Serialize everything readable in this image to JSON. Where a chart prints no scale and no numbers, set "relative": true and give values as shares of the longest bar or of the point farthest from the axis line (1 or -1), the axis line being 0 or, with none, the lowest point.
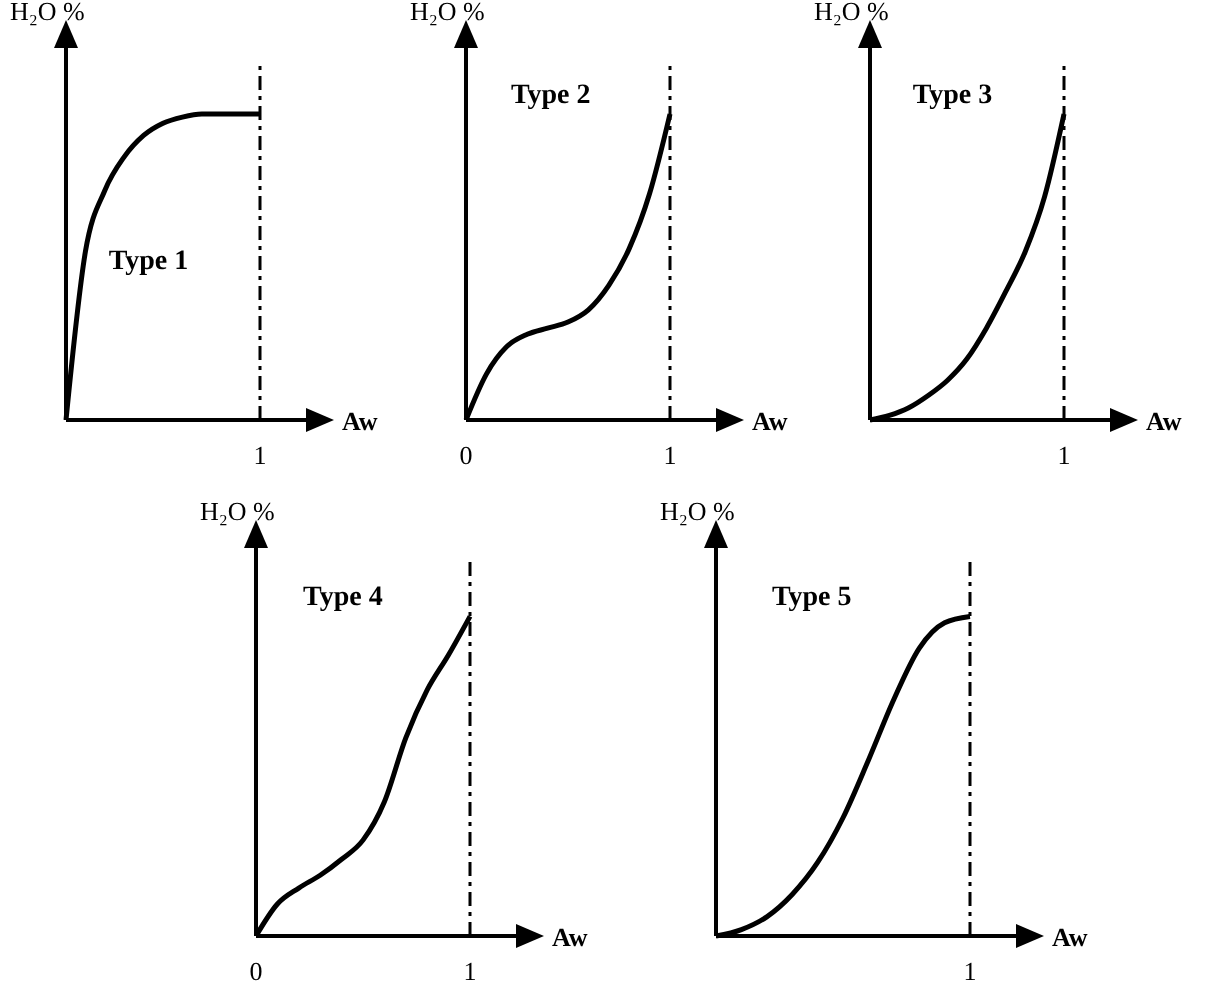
{
  "chart_data": [
    {
      "type": "line",
      "xlabel": "Aw",
      "ylabel": "H₂O %",
      "relative": true,
      "categories": [
        null,
        null,
        null,
        null,
        null,
        null,
        null,
        null,
        null,
        null,
        null
      ],
      "series": [
        {
          "color": "#000000",
          "values": [
            0,
            0.55,
            0.75,
            0.86,
            0.93,
            0.97,
            0.99,
            1,
            1,
            1,
            1
          ]
        }
      ],
      "ref_lines": [
        {
          "axis": "x",
          "label": "1"
        }
      ],
      "annotations": [
        "Type 1"
      ],
      "marker": "none"
    },
    {
      "type": "line",
      "xlabel": "Aw",
      "ylabel": "H₂O %",
      "relative": true,
      "categories": [
        "0",
        null,
        null,
        null,
        null,
        null,
        null,
        null,
        null,
        null,
        "1"
      ],
      "series": [
        {
          "color": "#000000",
          "values": [
            0,
            0.15,
            0.24,
            0.28,
            0.3,
            0.32,
            0.36,
            0.44,
            0.56,
            0.74,
            1
          ]
        }
      ],
      "ref_lines": [
        {
          "axis": "x"
        }
      ],
      "annotations": [
        "Type 2"
      ],
      "marker": "none"
    },
    {
      "type": "line",
      "xlabel": "Aw",
      "ylabel": "H₂O %",
      "relative": true,
      "categories": [
        null,
        null,
        null,
        null,
        null,
        null,
        null,
        null,
        null,
        null,
        null
      ],
      "series": [
        {
          "color": "#000000",
          "values": [
            0,
            0.015,
            0.04,
            0.08,
            0.13,
            0.2,
            0.3,
            0.42,
            0.55,
            0.73,
            1
          ]
        }
      ],
      "ref_lines": [
        {
          "axis": "x",
          "label": "1"
        }
      ],
      "annotations": [
        "Type 3"
      ],
      "marker": "none"
    },
    {
      "type": "line",
      "xlabel": "Aw",
      "ylabel": "H₂O %",
      "relative": true,
      "categories": [
        "0",
        null,
        null,
        null,
        null,
        null,
        null,
        null,
        null,
        null,
        "1"
      ],
      "series": [
        {
          "color": "#000000",
          "values": [
            0,
            0.1,
            0.15,
            0.19,
            0.24,
            0.3,
            0.42,
            0.62,
            0.77,
            0.88,
            1
          ]
        }
      ],
      "ref_lines": [
        {
          "axis": "x"
        }
      ],
      "annotations": [
        "Type 4"
      ],
      "marker": "none"
    },
    {
      "type": "line",
      "xlabel": "Aw",
      "ylabel": "H₂O %",
      "relative": true,
      "categories": [
        null,
        null,
        null,
        null,
        null,
        null,
        null,
        null,
        null,
        null,
        null
      ],
      "series": [
        {
          "color": "#000000",
          "values": [
            0,
            0.02,
            0.06,
            0.13,
            0.23,
            0.37,
            0.55,
            0.74,
            0.9,
            0.98,
            1
          ]
        }
      ],
      "ref_lines": [
        {
          "axis": "x",
          "label": "1"
        }
      ],
      "annotations": [
        "Type 5"
      ],
      "marker": "none"
    }
  ]
}
